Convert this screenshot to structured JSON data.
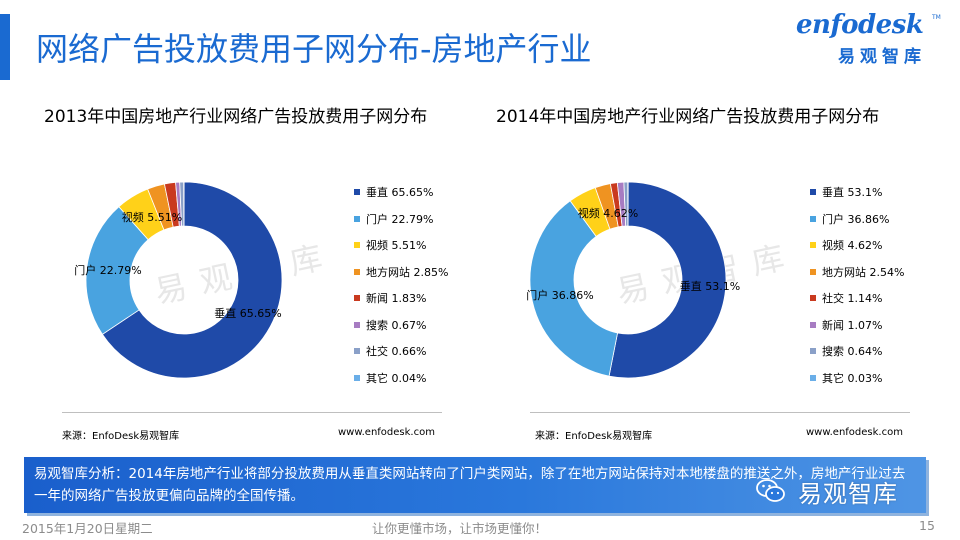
{
  "header": {
    "title": "网络广告投放费用子网分布-房地产行业"
  },
  "logo": {
    "word": "enfodesk",
    "tm": "TM",
    "chinese": "易观智库"
  },
  "watermark": "易观智库",
  "colors": {
    "accent": "#1a6ad1",
    "slices": [
      "#1f4aa8",
      "#49a3e0",
      "#ffd119",
      "#ef9321",
      "#c93a1f",
      "#a77cc2",
      "#8aa0c8",
      "#6aaee8"
    ]
  },
  "chart_data": [
    {
      "type": "pie",
      "donut": true,
      "title": "2013年中国房地产行业网络广告投放费用子网分布",
      "legend_position": "right",
      "categories": [
        "垂直",
        "门户",
        "视频",
        "地方网站",
        "新闻",
        "搜索",
        "社交",
        "其它"
      ],
      "values": [
        65.65,
        22.79,
        5.51,
        2.85,
        1.83,
        0.67,
        0.66,
        0.04
      ],
      "legend_labels": [
        "垂直 65.65%",
        "门户 22.79%",
        "视频 5.51%",
        "地方网站 2.85%",
        "新闻 1.83%",
        "搜索 0.67%",
        "社交 0.66%",
        "其它 0.04%"
      ],
      "data_labels": [
        {
          "category": "垂直",
          "text": "垂直 65.65%"
        },
        {
          "category": "门户",
          "text": "门户 22.79%"
        },
        {
          "category": "视频",
          "text": "视频 5.51%"
        }
      ],
      "source": "来源：EnfoDesk易观智库",
      "site": "www.enfodesk.com"
    },
    {
      "type": "pie",
      "donut": true,
      "title": "2014年中国房地产行业网络广告投放费用子网分布",
      "legend_position": "right",
      "categories": [
        "垂直",
        "门户",
        "视频",
        "地方网站",
        "社交",
        "新闻",
        "搜索",
        "其它"
      ],
      "values": [
        53.1,
        36.86,
        4.62,
        2.54,
        1.14,
        1.07,
        0.64,
        0.03
      ],
      "legend_labels": [
        "垂直 53.1%",
        "门户 36.86%",
        "视频 4.62%",
        "地方网站 2.54%",
        "社交 1.14%",
        "新闻 1.07%",
        "搜索 0.64%",
        "其它 0.03%"
      ],
      "data_labels": [
        {
          "category": "垂直",
          "text": "垂直 53.1%"
        },
        {
          "category": "门户",
          "text": "门户 36.86%"
        },
        {
          "category": "视频",
          "text": "视频 4.62%"
        }
      ],
      "source": "来源：EnfoDesk易观智库",
      "site": "www.enfodesk.com"
    }
  ],
  "analysis": {
    "text": "易观智库分析：2014年房地产行业将部分投放费用从垂直类网站转向了门户类网站，除了在地方网站保持对本地楼盘的推送之外，房地产行业过去一年的网络广告投放更偏向品牌的全国传播。"
  },
  "wechat_badge": {
    "icon": "wechat-icon",
    "label": "易观智库"
  },
  "footer": {
    "date": "2015年1月20日星期二",
    "slogan": "让你更懂市场，让市场更懂你！",
    "page_number": "15"
  }
}
